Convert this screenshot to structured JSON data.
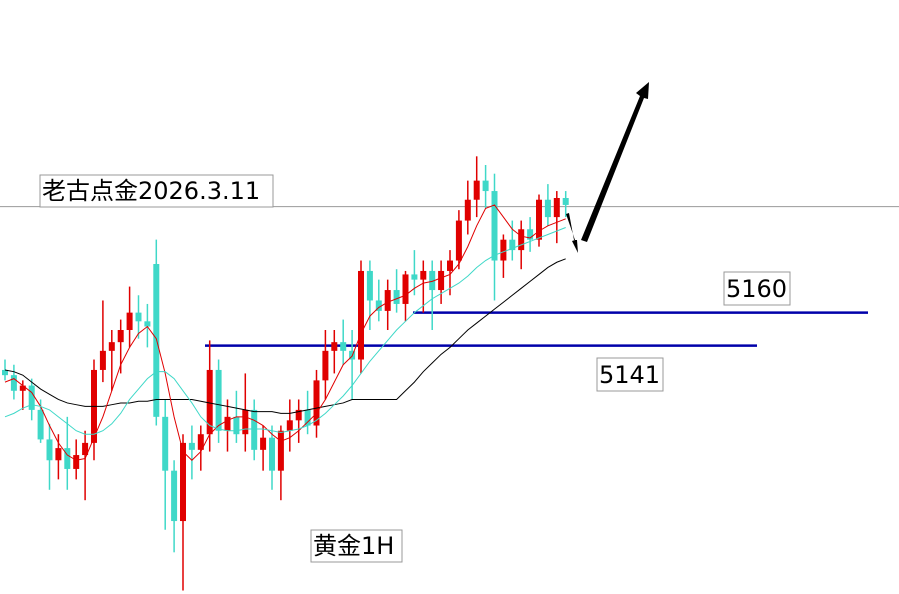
{
  "chart_data": {
    "type": "candlestick",
    "title": "老古点金2026.3.11",
    "subtitle": "黄金1H",
    "ylim": [
      4998,
      5340
    ],
    "up_color": "#e00000",
    "down_color": "#3fd8c8",
    "current_price": 5221,
    "levels": [
      {
        "value": 5160,
        "color": "#0000aa"
      },
      {
        "value": 5141,
        "color": "#0000aa"
      }
    ],
    "open": [
      5127,
      5124,
      5115,
      5118,
      5104,
      5087,
      5075,
      5082,
      5070,
      5078,
      5085,
      5127,
      5138,
      5143,
      5150,
      5160,
      5155,
      5188,
      5100,
      5069,
      5040,
      5085,
      5081,
      5090,
      5127,
      5092,
      5100,
      5090,
      5104,
      5081,
      5088,
      5069,
      5092,
      5098,
      5104,
      5095,
      5121,
      5138,
      5143,
      5138,
      5133,
      5184,
      5167,
      5161,
      5173,
      5165,
      5182,
      5179,
      5184,
      5173,
      5184,
      5190,
      5213,
      5225,
      5236,
      5230,
      5190,
      5202,
      5196,
      5208,
      5202,
      5225,
      5215,
      5226
    ],
    "high": [
      5133,
      5130,
      5121,
      5122,
      5110,
      5096,
      5090,
      5100,
      5087,
      5092,
      5133,
      5167,
      5150,
      5156,
      5175,
      5170,
      5165,
      5202,
      5110,
      5075,
      5090,
      5095,
      5095,
      5144,
      5133,
      5110,
      5115,
      5125,
      5110,
      5095,
      5095,
      5095,
      5110,
      5110,
      5115,
      5127,
      5150,
      5150,
      5156,
      5150,
      5190,
      5190,
      5179,
      5179,
      5185,
      5184,
      5196,
      5190,
      5190,
      5190,
      5196,
      5219,
      5236,
      5250,
      5245,
      5240,
      5205,
      5213,
      5213,
      5215,
      5228,
      5234,
      5230,
      5230
    ],
    "low": [
      5121,
      5110,
      5104,
      5098,
      5085,
      5058,
      5064,
      5058,
      5064,
      5052,
      5075,
      5120,
      5115,
      5125,
      5140,
      5145,
      5140,
      5095,
      5035,
      5022,
      5000,
      5064,
      5069,
      5080,
      5085,
      5080,
      5085,
      5080,
      5075,
      5069,
      5058,
      5052,
      5080,
      5085,
      5090,
      5088,
      5110,
      5125,
      5130,
      5110,
      5125,
      5150,
      5155,
      5150,
      5160,
      5155,
      5170,
      5160,
      5150,
      5165,
      5170,
      5185,
      5205,
      5215,
      5220,
      5167,
      5180,
      5190,
      5185,
      5195,
      5198,
      5210,
      5200,
      5215
    ],
    "close": [
      5124,
      5115,
      5118,
      5104,
      5087,
      5075,
      5082,
      5070,
      5078,
      5085,
      5127,
      5138,
      5143,
      5150,
      5160,
      5155,
      5152,
      5100,
      5069,
      5040,
      5085,
      5081,
      5090,
      5127,
      5092,
      5100,
      5090,
      5104,
      5081,
      5088,
      5069,
      5092,
      5098,
      5104,
      5095,
      5121,
      5138,
      5143,
      5138,
      5133,
      5184,
      5167,
      5161,
      5173,
      5165,
      5182,
      5179,
      5184,
      5173,
      5184,
      5190,
      5213,
      5225,
      5236,
      5230,
      5190,
      5202,
      5196,
      5208,
      5202,
      5225,
      5215,
      5226,
      5222
    ],
    "series": [
      {
        "color": "#000000",
        "values": [
          5127,
          5126,
          5124,
          5120,
          5116,
          5113,
          5110,
          5108,
          5107,
          5106,
          5106,
          5106,
          5107,
          5108,
          5108,
          5109,
          5109,
          5110,
          5110,
          5110,
          5110,
          5110,
          5109,
          5108,
          5107,
          5106,
          5105,
          5104,
          5103,
          5103,
          5103,
          5102,
          5102,
          5103,
          5104,
          5105,
          5106,
          5107,
          5108,
          5110,
          5110,
          5110,
          5110,
          5110,
          5110,
          5115,
          5120,
          5126,
          5131,
          5136,
          5140,
          5145,
          5150,
          5154,
          5158,
          5162,
          5166,
          5170,
          5174,
          5178,
          5182,
          5186,
          5189,
          5191
        ]
      },
      {
        "color": "#e00000",
        "values": [
          5120,
          5122,
          5118,
          5114,
          5106,
          5095,
          5085,
          5078,
          5075,
          5076,
          5088,
          5100,
          5115,
          5130,
          5140,
          5148,
          5152,
          5145,
          5125,
          5100,
          5080,
          5075,
          5080,
          5090,
          5095,
          5098,
          5100,
          5100,
          5098,
          5095,
          5090,
          5086,
          5088,
          5092,
          5097,
          5102,
          5110,
          5120,
          5130,
          5135,
          5148,
          5158,
          5163,
          5166,
          5168,
          5170,
          5174,
          5177,
          5178,
          5180,
          5182,
          5188,
          5198,
          5210,
          5220,
          5222,
          5215,
          5208,
          5204,
          5203,
          5207,
          5210,
          5212,
          5214
        ]
      },
      {
        "color": "#3fd8c8",
        "values": [
          5100,
          5102,
          5105,
          5107,
          5106,
          5104,
          5100,
          5096,
          5092,
          5090,
          5090,
          5092,
          5096,
          5102,
          5110,
          5116,
          5122,
          5126,
          5126,
          5122,
          5115,
          5108,
          5100,
          5095,
          5093,
          5092,
          5092,
          5093,
          5093,
          5093,
          5092,
          5091,
          5092,
          5093,
          5095,
          5098,
          5102,
          5107,
          5112,
          5118,
          5125,
          5132,
          5138,
          5144,
          5150,
          5155,
          5160,
          5164,
          5168,
          5171,
          5174,
          5177,
          5181,
          5186,
          5190,
          5193,
          5195,
          5197,
          5199,
          5201,
          5203,
          5205,
          5207,
          5209
        ]
      }
    ]
  }
}
